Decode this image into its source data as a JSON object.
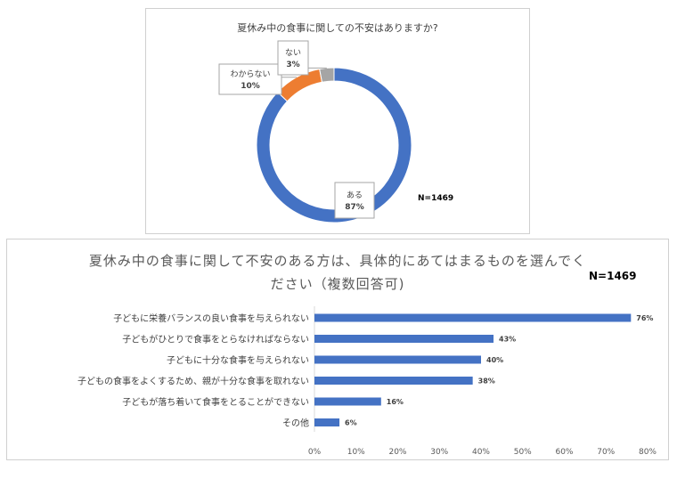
{
  "chart_data": [
    {
      "type": "pie",
      "title": "夏休み中の食事に関しての不安はありますか?",
      "note": "N=1469",
      "slices": [
        {
          "label": "ある",
          "value": 87,
          "display": "87%",
          "color": "#4472c4"
        },
        {
          "label": "わからない",
          "value": 10,
          "display": "10%",
          "color": "#ed7d31"
        },
        {
          "label": "ない",
          "value": 3,
          "display": "3%",
          "color": "#a5a5a5"
        }
      ]
    },
    {
      "type": "bar",
      "orientation": "horizontal",
      "title_line1": "夏休み中の食事に関して不安のある方は、具体的にあてはまるものを選んでく",
      "title_line2": "ださい（複数回答可)",
      "note": "N=1469",
      "color": "#4472c4",
      "categories": [
        "子どもに栄養バランスの良い食事を与えられない",
        "子どもがひとりで食事をとらなければならない",
        "子どもに十分な食事を与えられない",
        "子どもの食事をよくするため、親が十分な食事を取れない",
        "子どもが落ち着いて食事をとることができない",
        "その他"
      ],
      "values": [
        76,
        43,
        40,
        38,
        16,
        6
      ],
      "value_labels": [
        "76%",
        "43%",
        "40%",
        "38%",
        "16%",
        "6%"
      ],
      "xlim": [
        0,
        80
      ],
      "ticks": [
        "0%",
        "10%",
        "20%",
        "30%",
        "40%",
        "50%",
        "60%",
        "70%",
        "80%"
      ]
    }
  ]
}
